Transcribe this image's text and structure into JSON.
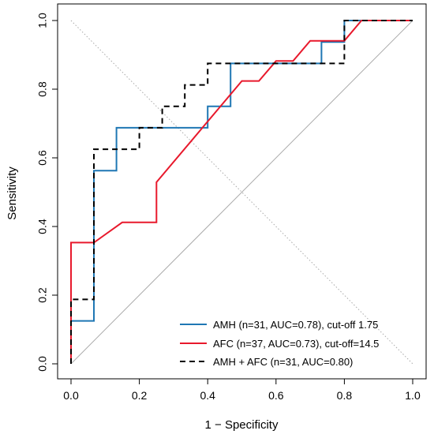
{
  "chart_data": {
    "type": "line",
    "title": "",
    "xlabel": "1 − Specificity",
    "ylabel": "Sensitivity",
    "xlim": [
      0,
      1
    ],
    "ylim": [
      0,
      1
    ],
    "xticks": [
      "0.0",
      "0.2",
      "0.4",
      "0.6",
      "0.8",
      "1.0"
    ],
    "yticks": [
      "0.0",
      "0.2",
      "0.4",
      "0.6",
      "0.8",
      "1.0"
    ],
    "grid": false,
    "legend_position": "bottom-right",
    "reference_lines": [
      {
        "type": "chance-diagonal",
        "color": "#aaaaaa"
      },
      {
        "type": "anti-diagonal",
        "color": "#aaaaaa",
        "style": "dotted"
      }
    ],
    "series": [
      {
        "name": "AMH (n=31, AUC=0.78), cut-off 1.75",
        "color": "#1f77b4",
        "style": "solid",
        "x": [
          0,
          0,
          0.067,
          0.067,
          0.133,
          0.133,
          0.4,
          0.4,
          0.467,
          0.467,
          0.733,
          0.733,
          0.8,
          0.8,
          1.0
        ],
        "y": [
          0,
          0.125,
          0.125,
          0.5625,
          0.5625,
          0.6875,
          0.6875,
          0.75,
          0.75,
          0.875,
          0.875,
          0.9375,
          0.9375,
          1.0,
          1.0
        ]
      },
      {
        "name": "AFC (n=37, AUC=0.73), cut-off=14.5",
        "color": "#e8192c",
        "style": "solid",
        "x": [
          0,
          0,
          0.067,
          0.15,
          0.25,
          0.25,
          0.5,
          0.55,
          0.6,
          0.65,
          0.7,
          0.8,
          0.85,
          1.0
        ],
        "y": [
          0,
          0.353,
          0.353,
          0.412,
          0.412,
          0.529,
          0.824,
          0.824,
          0.882,
          0.882,
          0.941,
          0.941,
          1.0,
          1.0
        ]
      },
      {
        "name": "AMH + AFC (n=31, AUC=0.80)",
        "color": "#000000",
        "style": "dashed",
        "x": [
          0,
          0,
          0.067,
          0.067,
          0.2,
          0.2,
          0.267,
          0.267,
          0.333,
          0.333,
          0.4,
          0.4,
          0.8,
          0.8,
          1.0
        ],
        "y": [
          0,
          0.1875,
          0.1875,
          0.625,
          0.625,
          0.6875,
          0.6875,
          0.75,
          0.75,
          0.8125,
          0.8125,
          0.875,
          0.875,
          1.0,
          1.0
        ]
      }
    ]
  }
}
